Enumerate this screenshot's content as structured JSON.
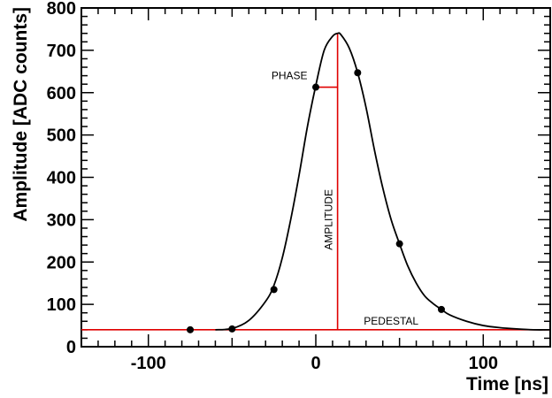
{
  "chart_data": {
    "type": "scatter",
    "xlabel": "Time [ns]",
    "ylabel": "Amplitude [ADC counts]",
    "xlim": [
      -140,
      140
    ],
    "ylim": [
      0,
      800
    ],
    "x_ticks": [
      -100,
      0,
      100
    ],
    "y_ticks": [
      0,
      100,
      200,
      300,
      400,
      500,
      600,
      700,
      800
    ],
    "grid": false,
    "series": [
      {
        "kind": "points",
        "x": [
          -75,
          -50,
          -25,
          0,
          25,
          50,
          75
        ],
        "y": [
          40,
          42,
          135,
          613,
          647,
          243,
          88
        ],
        "color": "#000000"
      },
      {
        "kind": "fit-curve",
        "x": [
          -60,
          -50,
          -40,
          -30,
          -25,
          -20,
          -15,
          -10,
          -5,
          0,
          5,
          10,
          13,
          15,
          20,
          25,
          30,
          35,
          40,
          45,
          50,
          55,
          60,
          65,
          70,
          75,
          80,
          90,
          100,
          110,
          120,
          130,
          140
        ],
        "y": [
          40,
          43,
          62,
          107,
          145,
          210,
          300,
          405,
          520,
          617,
          700,
          733,
          740,
          737,
          705,
          647,
          565,
          465,
          375,
          300,
          243,
          190,
          150,
          120,
          102,
          88,
          75,
          60,
          50,
          45,
          42,
          40,
          40
        ],
        "color": "#000000"
      }
    ],
    "pedestal": 40,
    "peak": {
      "x": 13,
      "y": 740
    },
    "phase_marker_y": 613,
    "annotations": {
      "phase": "PHASE",
      "amplitude": "AMPLITUDE",
      "pedestal": "PEDESTAL"
    },
    "marker_color": "#e00000"
  }
}
